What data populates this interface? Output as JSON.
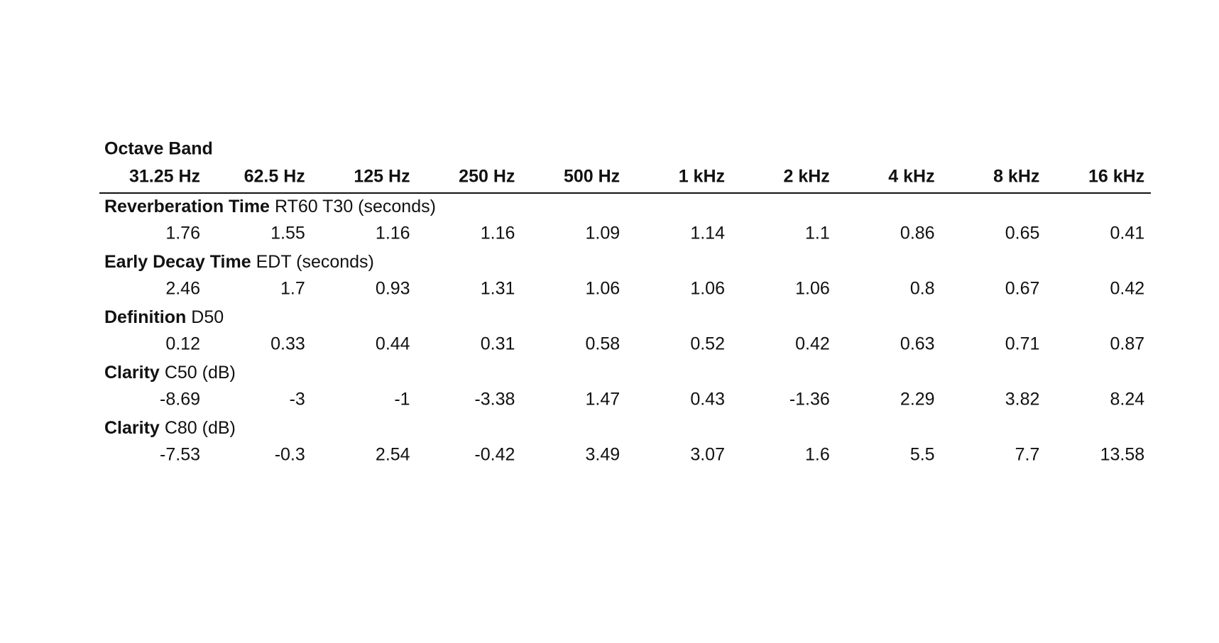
{
  "table": {
    "title": "Octave Band",
    "columns": [
      "31.25 Hz",
      "62.5 Hz",
      "125 Hz",
      "250 Hz",
      "500 Hz",
      "1 kHz",
      "2 kHz",
      "4 kHz",
      "8 kHz",
      "16 kHz"
    ],
    "sections": [
      {
        "name": "Reverberation Time",
        "detail": "RT60 T30 (seconds)",
        "values": [
          "1.76",
          "1.55",
          "1.16",
          "1.16",
          "1.09",
          "1.14",
          "1.1",
          "0.86",
          "0.65",
          "0.41"
        ]
      },
      {
        "name": "Early Decay Time",
        "detail": "EDT (seconds)",
        "values": [
          "2.46",
          "1.7",
          "0.93",
          "1.31",
          "1.06",
          "1.06",
          "1.06",
          "0.8",
          "0.67",
          "0.42"
        ]
      },
      {
        "name": "Definition",
        "detail": "D50",
        "values": [
          "0.12",
          "0.33",
          "0.44",
          "0.31",
          "0.58",
          "0.52",
          "0.42",
          "0.63",
          "0.71",
          "0.87"
        ]
      },
      {
        "name": "Clarity",
        "detail": "C50 (dB)",
        "values": [
          "-8.69",
          "-3",
          "-1",
          "-3.38",
          "1.47",
          "0.43",
          "-1.36",
          "2.29",
          "3.82",
          "8.24"
        ]
      },
      {
        "name": "Clarity",
        "detail": "C80 (dB)",
        "values": [
          "-7.53",
          "-0.3",
          "2.54",
          "-0.42",
          "3.49",
          "3.07",
          "1.6",
          "5.5",
          "7.7",
          "13.58"
        ]
      }
    ]
  }
}
